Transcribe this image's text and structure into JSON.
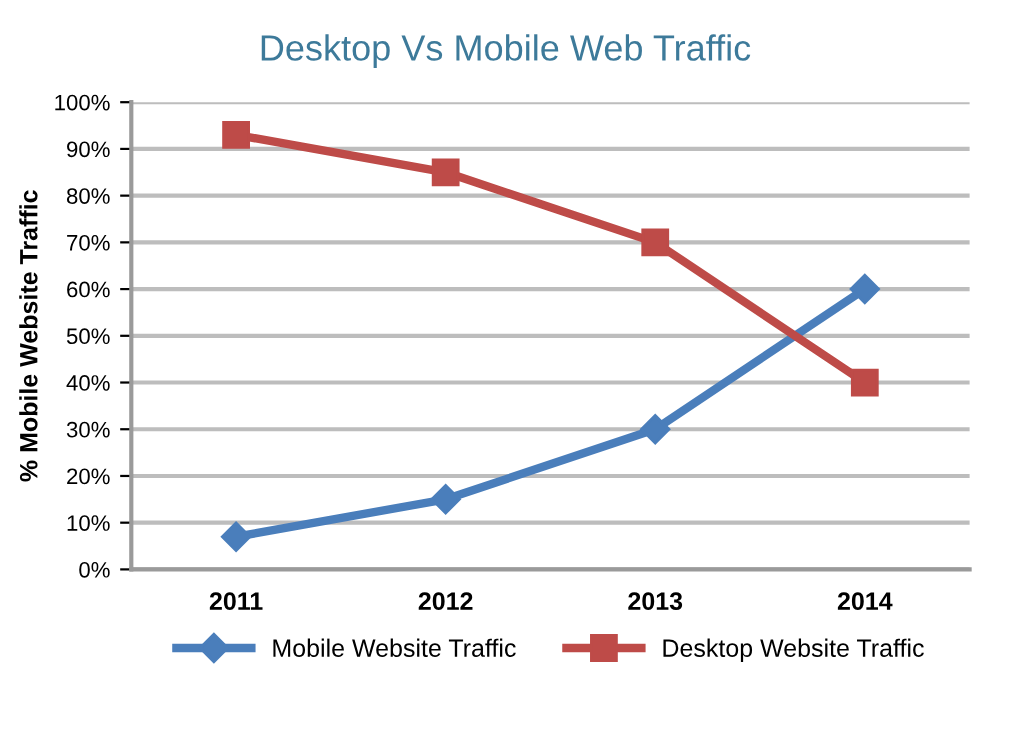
{
  "chart_data": {
    "type": "line",
    "title": "Desktop Vs Mobile Web Traffic",
    "ylabel": "% Mobile Website Traffic",
    "categories": [
      "2011",
      "2012",
      "2013",
      "2014"
    ],
    "series": [
      {
        "name": "Mobile Website Traffic",
        "color": "#4a7ebb",
        "marker": "diamond",
        "values": [
          7,
          15,
          30,
          60
        ]
      },
      {
        "name": "Desktop Website Traffic",
        "color": "#be4b48",
        "marker": "square",
        "values": [
          93,
          85,
          70,
          40
        ]
      }
    ],
    "ylim": [
      0,
      100
    ],
    "yticks": [
      {
        "value": 0,
        "label": "0%"
      },
      {
        "value": 10,
        "label": "10%"
      },
      {
        "value": 20,
        "label": "20%"
      },
      {
        "value": 30,
        "label": "30%"
      },
      {
        "value": 40,
        "label": "40%"
      },
      {
        "value": 50,
        "label": "50%"
      },
      {
        "value": 60,
        "label": "60%"
      },
      {
        "value": 70,
        "label": "70%"
      },
      {
        "value": 80,
        "label": "80%"
      },
      {
        "value": 90,
        "label": "90%"
      },
      {
        "value": 100,
        "label": "100%"
      }
    ],
    "grid": "y",
    "legend": "bottom",
    "line_style": "solid"
  }
}
